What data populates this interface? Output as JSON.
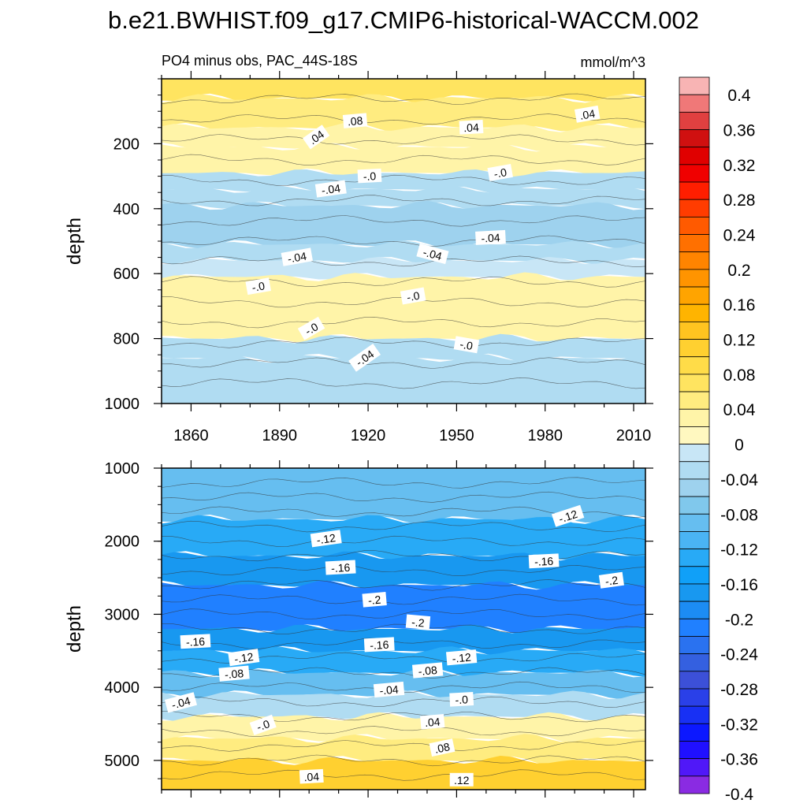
{
  "title": "b.e21.BWHIST.f09_g17.CMIP6-historical-WACCM.002",
  "chart_data": [
    {
      "type": "heatmap",
      "panel": "upper",
      "subtitle_left": "PO4 minus obs, PAC_44S-18S",
      "subtitle_right": "mmol/m^3",
      "ylabel": "depth",
      "xlabel": "",
      "xlim": [
        1850,
        2014
      ],
      "ylim": [
        1000,
        0
      ],
      "xticks": [
        "1860",
        "1890",
        "1920",
        "1950",
        "1980",
        "2010"
      ],
      "yticks": [
        "200",
        "400",
        "600",
        "800",
        "1000"
      ],
      "layers": [
        {
          "depth": [
            0,
            60
          ],
          "value": 0.07
        },
        {
          "depth": [
            60,
            150
          ],
          "value": 0.06
        },
        {
          "depth": [
            150,
            210
          ],
          "value": 0.04
        },
        {
          "depth": [
            210,
            290
          ],
          "value": 0.02
        },
        {
          "depth": [
            290,
            340
          ],
          "value": -0.02
        },
        {
          "depth": [
            340,
            390
          ],
          "value": -0.035
        },
        {
          "depth": [
            390,
            510
          ],
          "value": -0.05
        },
        {
          "depth": [
            510,
            560
          ],
          "value": -0.035
        },
        {
          "depth": [
            560,
            610
          ],
          "value": -0.01
        },
        {
          "depth": [
            610,
            800
          ],
          "value": 0.02
        },
        {
          "depth": [
            800,
            860
          ],
          "value": -0.02
        },
        {
          "depth": [
            860,
            1000
          ],
          "value": -0.04
        }
      ],
      "contour_labels": [
        ".08",
        ".04",
        ".04",
        ".04",
        "-.0",
        "-.0",
        "-.04",
        "-.04",
        "-.04",
        "-.04",
        "-.0",
        "-.0",
        "-.0",
        "-.0",
        "-.04"
      ]
    },
    {
      "type": "heatmap",
      "panel": "lower",
      "ylabel": "depth",
      "xlabel": "",
      "xlim": [
        1850,
        2014
      ],
      "ylim": [
        5400,
        1000
      ],
      "yticks": [
        "1000",
        "2000",
        "3000",
        "4000",
        "5000"
      ],
      "layers": [
        {
          "depth": [
            1000,
            1700
          ],
          "value": -0.09
        },
        {
          "depth": [
            1700,
            2200
          ],
          "value": -0.13
        },
        {
          "depth": [
            2200,
            2600
          ],
          "value": -0.17
        },
        {
          "depth": [
            2600,
            3200
          ],
          "value": -0.21
        },
        {
          "depth": [
            3200,
            3500
          ],
          "value": -0.17
        },
        {
          "depth": [
            3500,
            3800
          ],
          "value": -0.13
        },
        {
          "depth": [
            3800,
            4100
          ],
          "value": -0.09
        },
        {
          "depth": [
            4100,
            4400
          ],
          "value": -0.04
        },
        {
          "depth": [
            4400,
            4700
          ],
          "value": 0.02
        },
        {
          "depth": [
            4700,
            5000
          ],
          "value": 0.06
        },
        {
          "depth": [
            5000,
            5400
          ],
          "value": 0.1
        }
      ],
      "contour_labels": [
        "-.12",
        "-.12",
        "-.16",
        "-.16",
        "-.2",
        "-.2",
        "-.2",
        "-.16",
        "-.16",
        "-.12",
        "-.12",
        "-.08",
        "-.08",
        "-.04",
        "-.04",
        "-.0",
        "-.0",
        ".04",
        ".08",
        ".04",
        ".12"
      ]
    }
  ],
  "colorbar": {
    "labels": [
      "0.4",
      "0.36",
      "0.32",
      "0.28",
      "0.24",
      "0.2",
      "0.16",
      "0.12",
      "0.08",
      "0.04",
      "0",
      "-0.04",
      "-0.08",
      "-0.12",
      "-0.16",
      "-0.2",
      "-0.24",
      "-0.28",
      "-0.32",
      "-0.36",
      "-0.4"
    ],
    "colors": [
      "#f8b4b4",
      "#f07878",
      "#e04040",
      "#d01010",
      "#e00000",
      "#f00000",
      "#ff1e00",
      "#ff3c00",
      "#ff5a00",
      "#ff7000",
      "#ff8400",
      "#ff9400",
      "#ffa400",
      "#ffb400",
      "#ffc420",
      "#ffd030",
      "#ffdc48",
      "#ffe460",
      "#ffec80",
      "#fff4a8",
      "#fff8c0",
      "#c8e6f6",
      "#b0dcf2",
      "#9ed2ee",
      "#80c8ec",
      "#66bef0",
      "#4ab4f4",
      "#28aaf6",
      "#10a0f8",
      "#1898f0",
      "#1c8cf4",
      "#2080ff",
      "#2a72f0",
      "#3460e0",
      "#3c50d8",
      "#2a40e8",
      "#1830f4",
      "#0c18ff",
      "#2010ff",
      "#5018f8",
      "#8a2be2"
    ]
  }
}
